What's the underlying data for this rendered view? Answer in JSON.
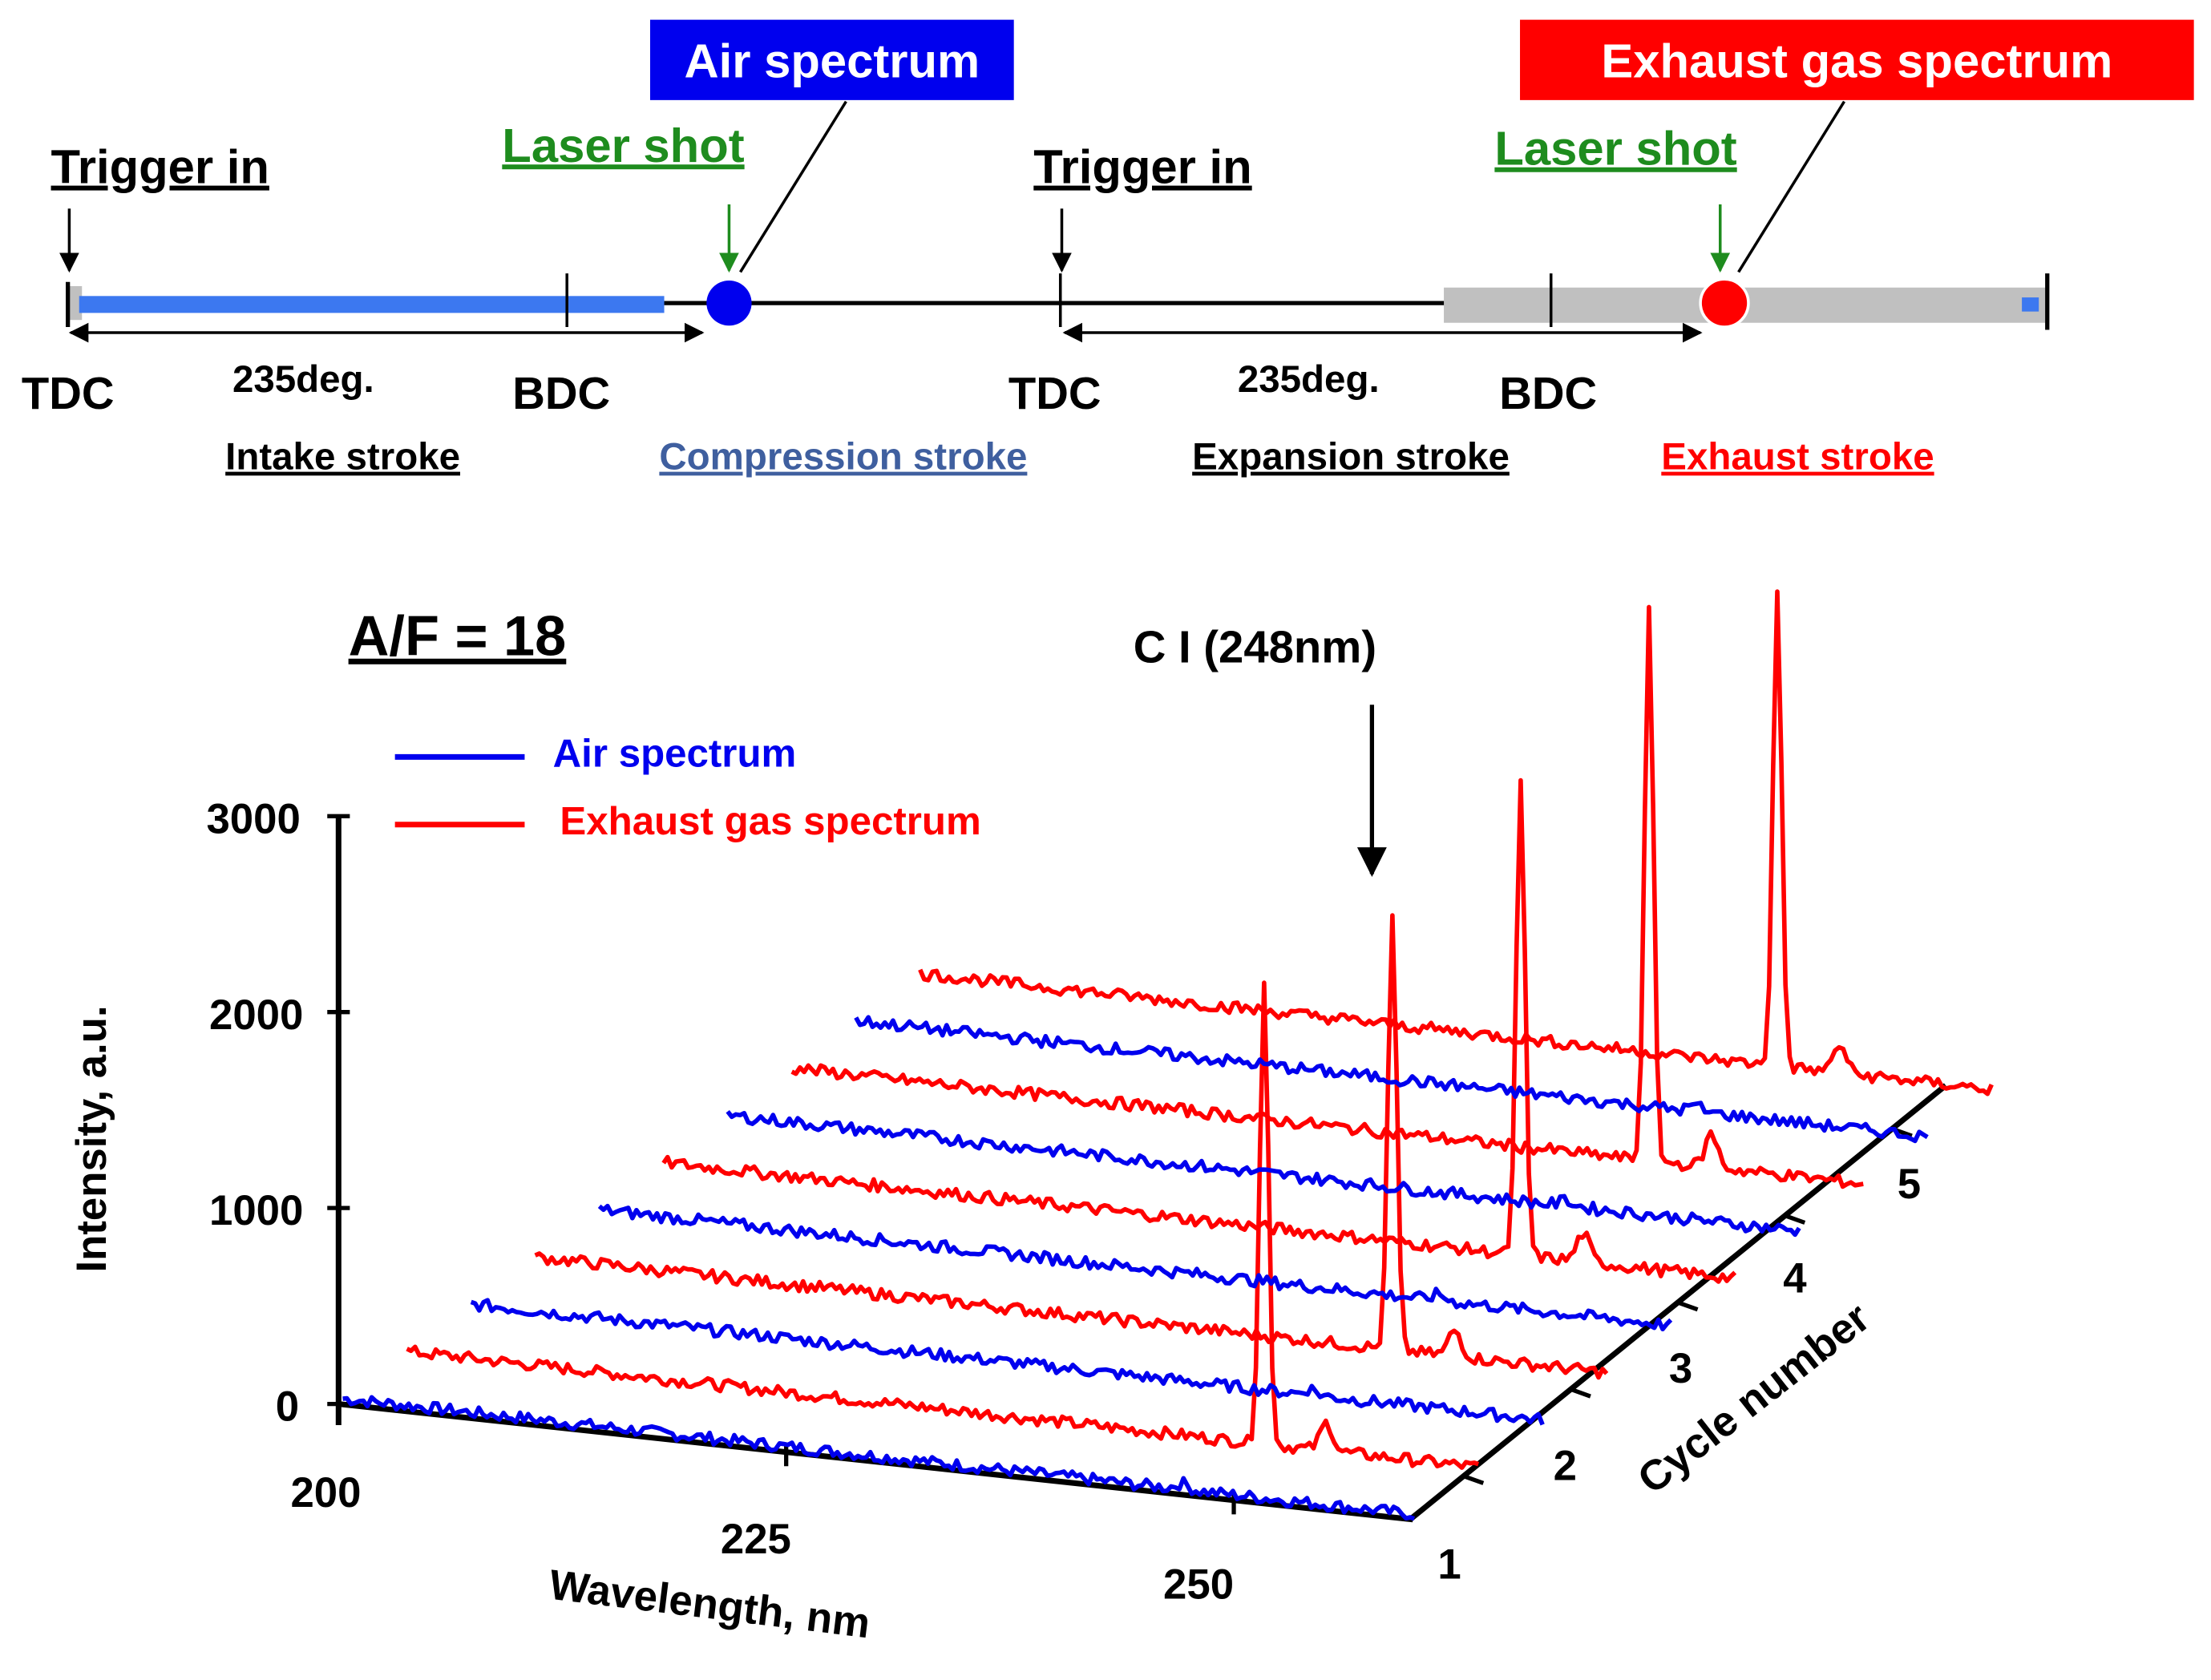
{
  "timeline": {
    "air_box_label": "Air spectrum",
    "exhaust_box_label": "Exhaust gas spectrum",
    "trigger_label_1": "Trigger in",
    "trigger_label_2": "Trigger in",
    "laser_label_1": "Laser shot",
    "laser_label_2": "Laser shot",
    "tdc_1": "TDC",
    "bdc_1": "BDC",
    "tdc_2": "TDC",
    "bdc_2": "BDC",
    "span_1": "235deg.",
    "span_2": "235deg.",
    "strokes": [
      "Intake stroke",
      "Compression stroke",
      "Expansion stroke",
      "Exhaust stroke"
    ],
    "colors": {
      "air": "#0000ee",
      "exhaust": "#ff0000",
      "intake_bar": "#3c78f0",
      "grey_bar": "#c0c0c0",
      "laser": "#1e8c1e",
      "compression_text": "#3f5f9f"
    }
  },
  "chart_data": {
    "type": "line",
    "title": "A/F = 18",
    "annotation": "C I (248nm)",
    "xlabel": "Wavelength, nm",
    "ylabel": "Intensity, a.u.",
    "zlabel": "Cycle number",
    "x_ticks": [
      "200",
      "225",
      "250"
    ],
    "y_ticks": [
      "0",
      "1000",
      "2000",
      "3000"
    ],
    "z_ticks": [
      "1",
      "2",
      "3",
      "4",
      "5"
    ],
    "xlim": [
      200,
      260
    ],
    "ylim": [
      0,
      3000
    ],
    "legend": [
      "Air spectrum",
      "Exhaust gas spectrum"
    ],
    "peak_wavelength": 248,
    "series": [
      {
        "name": "Air spectrum",
        "cycle": 1,
        "baseline": 20,
        "peak": 0
      },
      {
        "name": "Exhaust gas spectrum",
        "cycle": 1,
        "baseline": 20,
        "peak": 2350
      },
      {
        "name": "Air spectrum",
        "cycle": 2,
        "baseline": 20,
        "peak": 0
      },
      {
        "name": "Exhaust gas spectrum",
        "cycle": 2,
        "baseline": 20,
        "peak": 2200
      },
      {
        "name": "Air spectrum",
        "cycle": 3,
        "baseline": 20,
        "peak": 0
      },
      {
        "name": "Exhaust gas spectrum",
        "cycle": 3,
        "baseline": 20,
        "peak": 2400
      },
      {
        "name": "Air spectrum",
        "cycle": 4,
        "baseline": 20,
        "peak": 0
      },
      {
        "name": "Exhaust gas spectrum",
        "cycle": 4,
        "baseline": 20,
        "peak": 2800
      },
      {
        "name": "Air spectrum",
        "cycle": 5,
        "baseline": 20,
        "peak": 0
      },
      {
        "name": "Exhaust gas spectrum",
        "cycle": 5,
        "baseline": 20,
        "peak": 2400
      }
    ]
  }
}
